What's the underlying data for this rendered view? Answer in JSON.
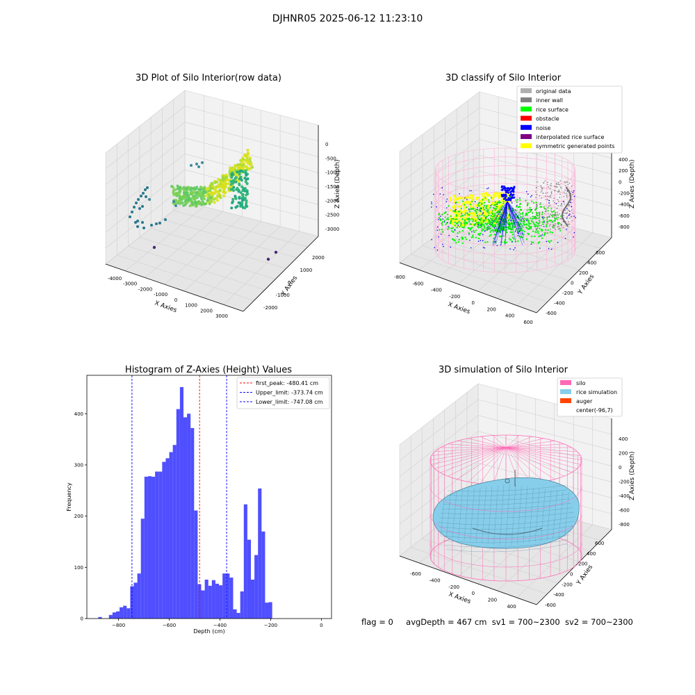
{
  "figure": {
    "suptitle": "DJHNR05 2025-06-12 11:23:10",
    "footer": {
      "flag": "flag = 0",
      "avg_depth": "avgDepth = 467 cm",
      "sv1": "sv1 = 700~2300",
      "sv2": "sv2 = 700~2300"
    }
  },
  "panels": {
    "raw": {
      "title": "3D Plot of Silo Interior(row data)",
      "xlabel": "X Axies",
      "ylabel": "Y Axies",
      "zlabel": "Z Axies (Depth)",
      "xticks": [
        "-4000",
        "-3000",
        "-2000",
        "-1000",
        "0",
        "1000",
        "2000",
        "3000"
      ],
      "yticks": [
        "-2000",
        "-1000",
        "0",
        "1000",
        "2000"
      ],
      "zticks": [
        "0",
        "-500",
        "-1000",
        "-1500",
        "-2000",
        "-2500",
        "-3000"
      ]
    },
    "classify": {
      "title": "3D classify of Silo Interior",
      "xlabel": "X Axies",
      "ylabel": "Y Axies",
      "zlabel": "Z Axies (Depth)",
      "xticks": [
        "-800",
        "-600",
        "-400",
        "-200",
        "0",
        "200",
        "400",
        "600"
      ],
      "yticks": [
        "-600",
        "-400",
        "-200",
        "0",
        "200",
        "400",
        "600"
      ],
      "zticks": [
        "400",
        "200",
        "0",
        "-200",
        "-400",
        "-600",
        "-800"
      ],
      "legend": [
        {
          "label": "original data",
          "color": "#b0b0b0"
        },
        {
          "label": "inner wall",
          "color": "#808080"
        },
        {
          "label": "rice surface",
          "color": "#00ff00"
        },
        {
          "label": "obstacle",
          "color": "#ff0000"
        },
        {
          "label": "noise",
          "color": "#0000ff"
        },
        {
          "label": "interpolated rice surface",
          "color": "#800080"
        },
        {
          "label": "symmetric generated points",
          "color": "#ffff00"
        }
      ]
    },
    "simulation": {
      "title": "3D simulation of Silo Interior",
      "xlabel": "X Axies",
      "ylabel": "Y Axies",
      "zlabel": "Z Axies (Depth)",
      "xticks": [
        "-600",
        "-400",
        "-200",
        "0",
        "200",
        "400"
      ],
      "yticks": [
        "-600",
        "-400",
        "-200",
        "0",
        "200",
        "400",
        "600"
      ],
      "zticks": [
        "400",
        "200",
        "0",
        "-200",
        "-400",
        "-600",
        "-800"
      ],
      "legend": [
        {
          "label": "silo",
          "color": "#ff69b4"
        },
        {
          "label": "rice simulation",
          "color": "#87ceeb"
        },
        {
          "label": "auger",
          "color": "#ff4500"
        },
        {
          "label": "center(-96,7)",
          "color": "#ffffff"
        }
      ]
    }
  },
  "chart_data": {
    "type": "bar",
    "title": "Histogram of Z-Axies (Height) Values",
    "xlabel": "Depth (cm)",
    "ylabel": "Frequency",
    "xlim": [
      -925,
      40
    ],
    "ylim": [
      0,
      475
    ],
    "xticks": [
      -800,
      -600,
      -400,
      -200,
      0
    ],
    "yticks": [
      0,
      100,
      200,
      300,
      400
    ],
    "bin_start": -880,
    "bin_width": 14,
    "values": [
      3,
      0,
      0,
      7,
      12,
      14,
      22,
      25,
      20,
      63,
      70,
      88,
      195,
      277,
      278,
      277,
      287,
      287,
      306,
      313,
      325,
      339,
      409,
      452,
      393,
      400,
      372,
      211,
      67,
      55,
      76,
      64,
      75,
      68,
      65,
      88,
      88,
      80,
      18,
      11,
      53,
      223,
      154,
      76,
      124,
      254,
      170,
      31,
      32
    ],
    "bar_color": "#4040ff",
    "vlines": [
      {
        "label": "first_peak: -480.41 cm",
        "x": -480.41,
        "color": "#ff0000"
      },
      {
        "label": "Upper_limit: -373.74 cm",
        "x": -373.74,
        "color": "#0000ff"
      },
      {
        "label": "Lower_limit: -747.08 cm",
        "x": -747.08,
        "color": "#0000ff"
      }
    ],
    "legend_position": "top-right"
  }
}
